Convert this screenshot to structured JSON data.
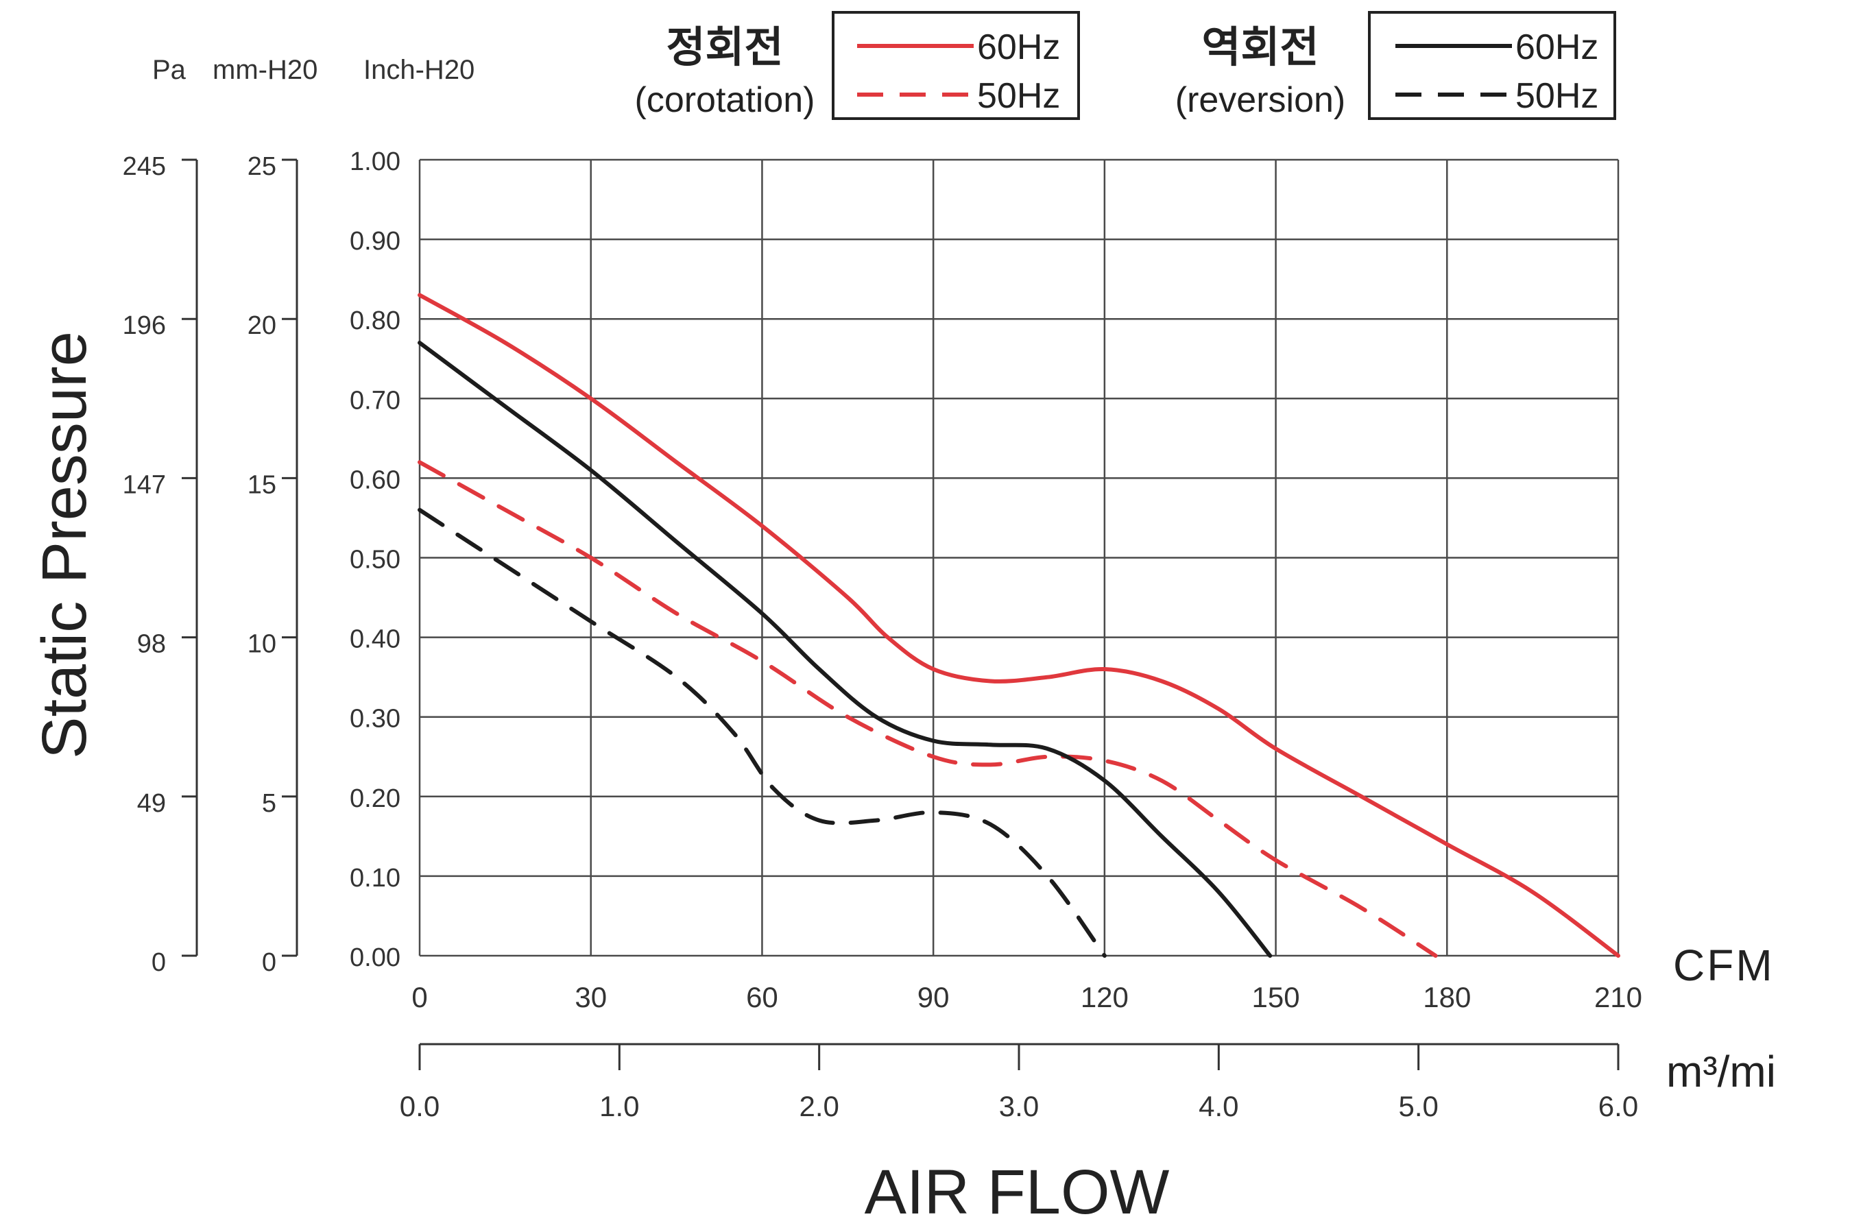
{
  "chart_data": {
    "type": "line",
    "title": "",
    "xlabel": "AIR FLOW",
    "ylabel": "Static Pressure",
    "unit_headers": [
      "Pa",
      "mm-H20",
      "Inch-H20"
    ],
    "x_unit": "CFM",
    "x2_unit": "m³/mi",
    "xlim": [
      0,
      210
    ],
    "ylim": [
      0,
      1.0
    ],
    "x_ticks": [
      "0",
      "30",
      "60",
      "90",
      "120",
      "150",
      "180",
      "210"
    ],
    "x2_ticks": [
      "0.0",
      "1.0",
      "2.0",
      "3.0",
      "4.0",
      "5.0",
      "6.0"
    ],
    "y_ticks": [
      "0.00",
      "0.10",
      "0.20",
      "0.30",
      "0.40",
      "0.50",
      "0.60",
      "0.70",
      "0.80",
      "0.90",
      "1.00"
    ],
    "y_pa_ticks": [
      "0",
      "49",
      "98",
      "147",
      "196",
      "245"
    ],
    "y_mm_ticks": [
      "0",
      "5",
      "10",
      "15",
      "20",
      "25"
    ],
    "grid": true,
    "legend": [
      {
        "group": "정회전",
        "group_en": "(corotation)",
        "entries": [
          {
            "label": "60Hz",
            "color": "#e0383d",
            "dash": "solid"
          },
          {
            "label": "50Hz",
            "color": "#e0383d",
            "dash": "dashed"
          }
        ]
      },
      {
        "group": "역회전",
        "group_en": "(reversion)",
        "entries": [
          {
            "label": "60Hz",
            "color": "#1c1c1c",
            "dash": "solid"
          },
          {
            "label": "50Hz",
            "color": "#1c1c1c",
            "dash": "dashed"
          }
        ]
      }
    ],
    "series": [
      {
        "name": "정회전 60Hz",
        "color": "#e0383d",
        "dash": "solid",
        "x": [
          0,
          15,
          30,
          45,
          60,
          75,
          82,
          90,
          100,
          110,
          120,
          130,
          140,
          150,
          165,
          180,
          195,
          210
        ],
        "y": [
          0.83,
          0.77,
          0.7,
          0.62,
          0.54,
          0.45,
          0.4,
          0.36,
          0.345,
          0.35,
          0.36,
          0.345,
          0.31,
          0.26,
          0.2,
          0.14,
          0.08,
          0.0
        ]
      },
      {
        "name": "정회전 50Hz",
        "color": "#e0383d",
        "dash": "dashed",
        "x": [
          0,
          15,
          30,
          45,
          60,
          75,
          90,
          100,
          110,
          120,
          130,
          140,
          150,
          165,
          178
        ],
        "y": [
          0.62,
          0.56,
          0.5,
          0.43,
          0.37,
          0.3,
          0.25,
          0.24,
          0.25,
          0.245,
          0.22,
          0.17,
          0.12,
          0.06,
          0.0
        ]
      },
      {
        "name": "역회전 60Hz",
        "color": "#1c1c1c",
        "dash": "solid",
        "x": [
          0,
          15,
          30,
          45,
          60,
          70,
          80,
          90,
          100,
          110,
          120,
          130,
          140,
          149
        ],
        "y": [
          0.77,
          0.69,
          0.61,
          0.52,
          0.43,
          0.36,
          0.3,
          0.27,
          0.265,
          0.26,
          0.22,
          0.15,
          0.08,
          0.0
        ]
      },
      {
        "name": "역회전 50Hz",
        "color": "#1c1c1c",
        "dash": "dashed",
        "x": [
          0,
          15,
          30,
          45,
          55,
          62,
          70,
          80,
          90,
          100,
          110,
          120
        ],
        "y": [
          0.56,
          0.49,
          0.42,
          0.35,
          0.28,
          0.21,
          0.17,
          0.17,
          0.18,
          0.165,
          0.1,
          0.0
        ]
      }
    ]
  }
}
